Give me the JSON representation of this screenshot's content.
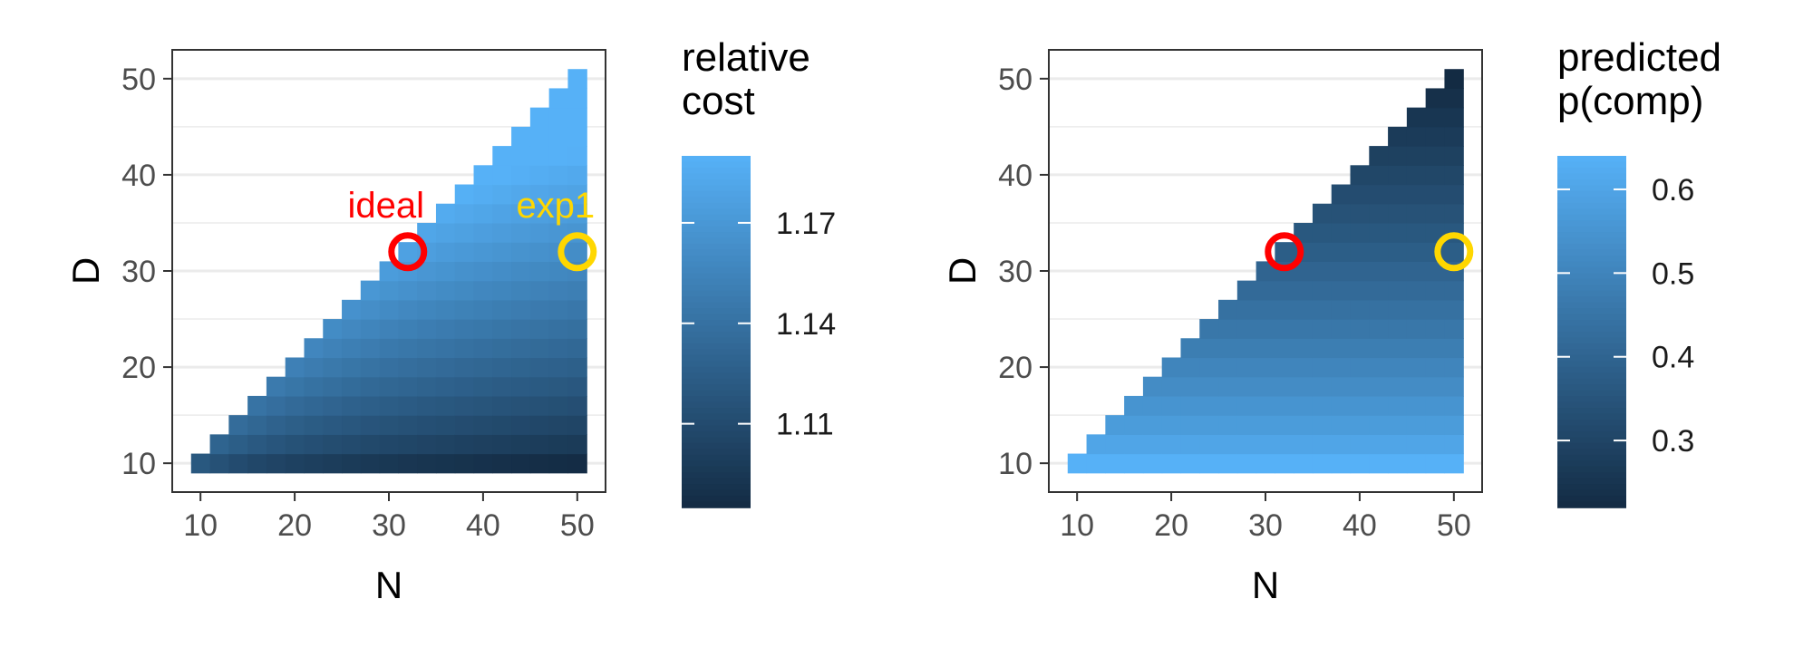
{
  "chart_data": [
    {
      "type": "heatmap",
      "xlabel": "N",
      "ylabel": "D",
      "xlim": [
        7,
        53
      ],
      "ylim": [
        7,
        53
      ],
      "xticks": [
        10,
        20,
        30,
        40,
        50
      ],
      "yticks": [
        10,
        20,
        30,
        40,
        50
      ],
      "grid": true,
      "domain": "D <= N, N and D from 10 to 50 in steps of 2",
      "cell_step": 2,
      "value_range": [
        1.085,
        1.19
      ],
      "low_color": "#132B43",
      "high_color": "#56B1F7",
      "legend": {
        "title_lines": [
          "relative",
          "cost"
        ],
        "breaks": [
          1.11,
          1.14,
          1.17
        ],
        "break_labels": [
          "1.11",
          "1.14",
          "1.17"
        ],
        "position": "right"
      },
      "markers": [
        {
          "label": "ideal",
          "x": 32,
          "y": 32,
          "color": "#FF0000"
        },
        {
          "label": "exp1",
          "x": 50,
          "y": 32,
          "color": "#FFD700"
        }
      ]
    },
    {
      "type": "heatmap",
      "xlabel": "N",
      "ylabel": "D",
      "xlim": [
        7,
        53
      ],
      "ylim": [
        7,
        53
      ],
      "xticks": [
        10,
        20,
        30,
        40,
        50
      ],
      "yticks": [
        10,
        20,
        30,
        40,
        50
      ],
      "grid": true,
      "domain": "D <= N, N and D from 10 to 50 in steps of 2",
      "cell_step": 2,
      "value_range": [
        0.22,
        0.64
      ],
      "low_color": "#132B43",
      "high_color": "#56B1F7",
      "legend": {
        "title_lines": [
          "predicted",
          "p(comp)"
        ],
        "breaks": [
          0.3,
          0.4,
          0.5,
          0.6
        ],
        "break_labels": [
          "0.3",
          "0.4",
          "0.5",
          "0.6"
        ],
        "position": "right"
      },
      "markers": [
        {
          "label": "",
          "x": 32,
          "y": 32,
          "color": "#FF0000"
        },
        {
          "label": "",
          "x": 50,
          "y": 32,
          "color": "#FFD700"
        }
      ]
    }
  ]
}
